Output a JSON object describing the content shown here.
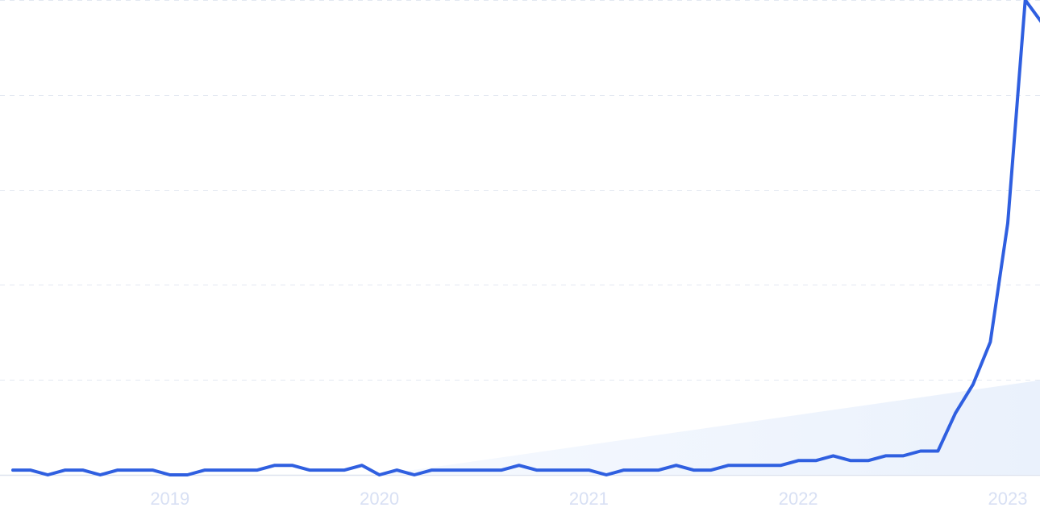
{
  "chart_data": {
    "type": "line",
    "title": "",
    "xlabel": "",
    "ylabel": "",
    "x_tick_labels": [
      "2019",
      "2020",
      "2021",
      "2022",
      "2023"
    ],
    "y_range": [
      0,
      100
    ],
    "gridlines": [
      20,
      40,
      60,
      80,
      100
    ],
    "grid": true,
    "legend": "none",
    "colors": {
      "line": "#2f5fe0",
      "grid": "#e3e8f1",
      "tick_label": "#d8e0f4",
      "trend_fill": "#eaf1fc"
    },
    "trend": {
      "start": [
        "2020-01",
        0
      ],
      "end": [
        "2023-03",
        20
      ]
    },
    "series": [
      {
        "points": [
          [
            "2018-04",
            1
          ],
          [
            "2018-05",
            1
          ],
          [
            "2018-06",
            0
          ],
          [
            "2018-07",
            1
          ],
          [
            "2018-08",
            1
          ],
          [
            "2018-09",
            0
          ],
          [
            "2018-10",
            1
          ],
          [
            "2018-11",
            1
          ],
          [
            "2018-12",
            1
          ],
          [
            "2019-01",
            0
          ],
          [
            "2019-02",
            0
          ],
          [
            "2019-03",
            1
          ],
          [
            "2019-04",
            1
          ],
          [
            "2019-05",
            1
          ],
          [
            "2019-06",
            1
          ],
          [
            "2019-07",
            2
          ],
          [
            "2019-08",
            2
          ],
          [
            "2019-09",
            1
          ],
          [
            "2019-10",
            1
          ],
          [
            "2019-11",
            1
          ],
          [
            "2019-12",
            2
          ],
          [
            "2020-01",
            0
          ],
          [
            "2020-02",
            1
          ],
          [
            "2020-03",
            0
          ],
          [
            "2020-04",
            1
          ],
          [
            "2020-05",
            1
          ],
          [
            "2020-06",
            1
          ],
          [
            "2020-07",
            1
          ],
          [
            "2020-08",
            1
          ],
          [
            "2020-09",
            2
          ],
          [
            "2020-10",
            1
          ],
          [
            "2020-11",
            1
          ],
          [
            "2020-12",
            1
          ],
          [
            "2021-01",
            1
          ],
          [
            "2021-02",
            0
          ],
          [
            "2021-03",
            1
          ],
          [
            "2021-04",
            1
          ],
          [
            "2021-05",
            1
          ],
          [
            "2021-06",
            2
          ],
          [
            "2021-07",
            1
          ],
          [
            "2021-08",
            1
          ],
          [
            "2021-09",
            2
          ],
          [
            "2021-10",
            2
          ],
          [
            "2021-11",
            2
          ],
          [
            "2021-12",
            2
          ],
          [
            "2022-01",
            3
          ],
          [
            "2022-02",
            3
          ],
          [
            "2022-03",
            4
          ],
          [
            "2022-04",
            3
          ],
          [
            "2022-05",
            3
          ],
          [
            "2022-06",
            4
          ],
          [
            "2022-07",
            4
          ],
          [
            "2022-08",
            5
          ],
          [
            "2022-09",
            5
          ],
          [
            "2022-10",
            13
          ],
          [
            "2022-11",
            19
          ],
          [
            "2022-12",
            28
          ],
          [
            "2023-01",
            53
          ],
          [
            "2023-02",
            100
          ],
          [
            "2023-03",
            95
          ]
        ]
      }
    ]
  }
}
